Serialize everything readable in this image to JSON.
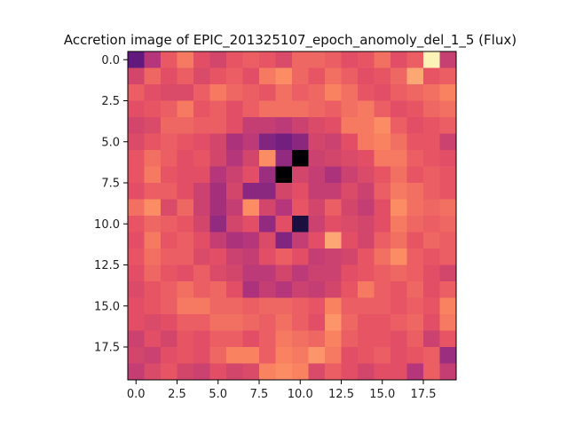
{
  "chart_data": {
    "type": "heatmap",
    "title": "Accretion image of EPIC_201325107_epoch_anomoly_del_1_5 (Flux)",
    "xlabel": "",
    "ylabel": "",
    "colormap": "magma",
    "xlim": [
      -0.5,
      19.5
    ],
    "ylim": [
      19.5,
      -0.5
    ],
    "x_ticks": [
      0.0,
      2.5,
      5.0,
      7.5,
      10.0,
      12.5,
      15.0,
      17.5
    ],
    "x_tick_labels": [
      "0.0",
      "2.5",
      "5.0",
      "7.5",
      "10.0",
      "12.5",
      "15.0",
      "17.5"
    ],
    "y_ticks": [
      0.0,
      2.5,
      5.0,
      7.5,
      10.0,
      12.5,
      15.0,
      17.5
    ],
    "y_tick_labels": [
      "0.0",
      "2.5",
      "5.0",
      "7.5",
      "10.0",
      "12.5",
      "15.0",
      "17.5"
    ],
    "value_range": [
      0,
      1
    ],
    "grid": false,
    "values": [
      [
        0.3,
        0.5,
        0.65,
        0.72,
        0.62,
        0.58,
        0.64,
        0.66,
        0.64,
        0.6,
        0.68,
        0.68,
        0.66,
        0.62,
        0.64,
        0.7,
        0.62,
        0.66,
        0.98,
        0.55
      ],
      [
        0.58,
        0.68,
        0.62,
        0.66,
        0.6,
        0.64,
        0.66,
        0.62,
        0.72,
        0.76,
        0.68,
        0.64,
        0.7,
        0.66,
        0.62,
        0.64,
        0.68,
        0.82,
        0.64,
        0.66
      ],
      [
        0.66,
        0.62,
        0.6,
        0.6,
        0.66,
        0.72,
        0.68,
        0.66,
        0.64,
        0.7,
        0.66,
        0.68,
        0.74,
        0.7,
        0.64,
        0.62,
        0.66,
        0.68,
        0.7,
        0.74
      ],
      [
        0.62,
        0.64,
        0.66,
        0.72,
        0.64,
        0.66,
        0.62,
        0.66,
        0.7,
        0.7,
        0.7,
        0.68,
        0.66,
        0.7,
        0.72,
        0.66,
        0.62,
        0.64,
        0.68,
        0.7
      ],
      [
        0.58,
        0.6,
        0.68,
        0.68,
        0.66,
        0.66,
        0.62,
        0.54,
        0.54,
        0.52,
        0.56,
        0.6,
        0.62,
        0.72,
        0.72,
        0.76,
        0.66,
        0.62,
        0.64,
        0.66
      ],
      [
        0.6,
        0.64,
        0.66,
        0.64,
        0.62,
        0.58,
        0.48,
        0.52,
        0.38,
        0.34,
        0.4,
        0.58,
        0.56,
        0.62,
        0.72,
        0.74,
        0.7,
        0.64,
        0.64,
        0.56
      ],
      [
        0.64,
        0.7,
        0.66,
        0.62,
        0.64,
        0.58,
        0.5,
        0.58,
        0.76,
        0.42,
        0.0,
        0.56,
        0.58,
        0.6,
        0.62,
        0.72,
        0.72,
        0.66,
        0.64,
        0.62
      ],
      [
        0.64,
        0.72,
        0.64,
        0.62,
        0.62,
        0.5,
        0.56,
        0.62,
        0.44,
        0.0,
        0.58,
        0.54,
        0.48,
        0.56,
        0.6,
        0.64,
        0.7,
        0.64,
        0.66,
        0.64
      ],
      [
        0.62,
        0.66,
        0.66,
        0.62,
        0.56,
        0.46,
        0.58,
        0.4,
        0.4,
        0.58,
        0.62,
        0.54,
        0.54,
        0.6,
        0.56,
        0.66,
        0.72,
        0.7,
        0.66,
        0.64
      ],
      [
        0.7,
        0.76,
        0.6,
        0.68,
        0.56,
        0.46,
        0.54,
        0.76,
        0.58,
        0.5,
        0.64,
        0.58,
        0.66,
        0.58,
        0.54,
        0.62,
        0.76,
        0.7,
        0.68,
        0.7
      ],
      [
        0.64,
        0.68,
        0.66,
        0.64,
        0.58,
        0.42,
        0.58,
        0.62,
        0.42,
        0.62,
        0.12,
        0.56,
        0.62,
        0.6,
        0.58,
        0.62,
        0.72,
        0.68,
        0.66,
        0.68
      ],
      [
        0.62,
        0.72,
        0.64,
        0.66,
        0.62,
        0.54,
        0.48,
        0.5,
        0.6,
        0.38,
        0.54,
        0.62,
        0.82,
        0.62,
        0.58,
        0.66,
        0.7,
        0.64,
        0.68,
        0.66
      ],
      [
        0.64,
        0.7,
        0.66,
        0.66,
        0.6,
        0.62,
        0.56,
        0.54,
        0.62,
        0.66,
        0.62,
        0.54,
        0.56,
        0.58,
        0.64,
        0.7,
        0.76,
        0.66,
        0.64,
        0.66
      ],
      [
        0.62,
        0.68,
        0.64,
        0.62,
        0.66,
        0.6,
        0.58,
        0.52,
        0.52,
        0.58,
        0.52,
        0.56,
        0.56,
        0.62,
        0.64,
        0.66,
        0.68,
        0.66,
        0.62,
        0.58
      ],
      [
        0.6,
        0.64,
        0.66,
        0.7,
        0.66,
        0.68,
        0.62,
        0.48,
        0.54,
        0.5,
        0.56,
        0.54,
        0.58,
        0.64,
        0.72,
        0.66,
        0.64,
        0.68,
        0.62,
        0.66
      ],
      [
        0.62,
        0.64,
        0.66,
        0.72,
        0.72,
        0.68,
        0.68,
        0.66,
        0.68,
        0.68,
        0.66,
        0.64,
        0.74,
        0.66,
        0.66,
        0.66,
        0.64,
        0.66,
        0.64,
        0.74
      ],
      [
        0.62,
        0.6,
        0.62,
        0.66,
        0.66,
        0.7,
        0.7,
        0.68,
        0.66,
        0.7,
        0.66,
        0.62,
        0.78,
        0.68,
        0.64,
        0.64,
        0.66,
        0.68,
        0.62,
        0.72
      ],
      [
        0.56,
        0.62,
        0.58,
        0.64,
        0.62,
        0.66,
        0.66,
        0.62,
        0.66,
        0.72,
        0.7,
        0.68,
        0.74,
        0.66,
        0.64,
        0.64,
        0.62,
        0.66,
        0.56,
        0.64
      ],
      [
        0.58,
        0.56,
        0.62,
        0.64,
        0.62,
        0.68,
        0.74,
        0.74,
        0.66,
        0.74,
        0.72,
        0.78,
        0.72,
        0.62,
        0.64,
        0.66,
        0.62,
        0.64,
        0.66,
        0.44
      ],
      [
        0.54,
        0.6,
        0.64,
        0.58,
        0.56,
        0.62,
        0.58,
        0.6,
        0.74,
        0.76,
        0.74,
        0.6,
        0.66,
        0.62,
        0.58,
        0.62,
        0.62,
        0.5,
        0.66,
        0.54
      ]
    ]
  }
}
